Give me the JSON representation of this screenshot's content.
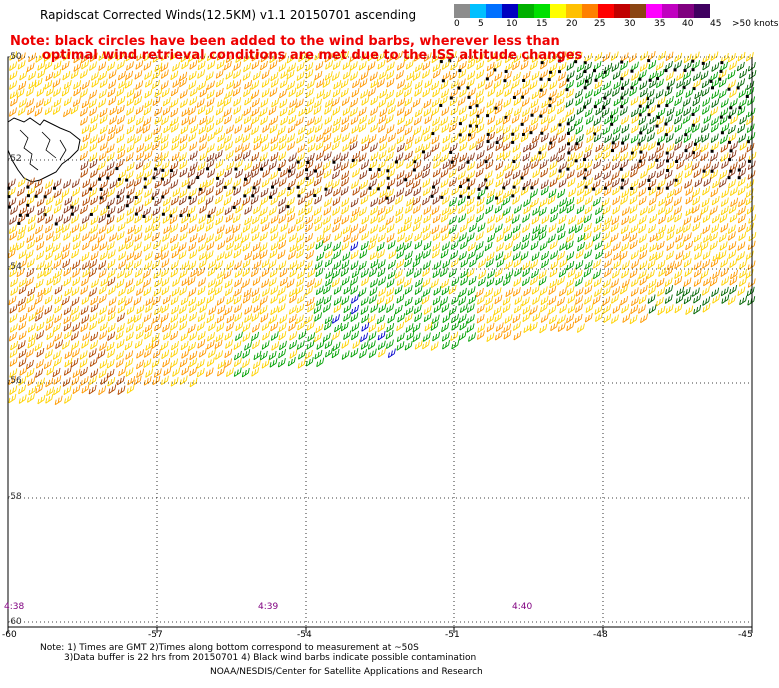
{
  "title": "Rapidscat Corrected Winds(12.5KM) v1.1 20150701 ascending",
  "note_line1": "Note: black circles have been added to the wind barbs, wherever less than",
  "note_line2": "optimal wind retrieval conditions are met due to the ISS altitude changes",
  "legend": {
    "colors": [
      "#8c8c8c",
      "#00c0ff",
      "#0070ff",
      "#0000c0",
      "#00b000",
      "#00e000",
      "#ffff00",
      "#ffc000",
      "#ff8000",
      "#ff0000",
      "#c00000",
      "#8b4513",
      "#ff00ff",
      "#c000c0",
      "#800080",
      "#400060"
    ],
    "labels": [
      "0",
      "5",
      "10",
      "15",
      "20",
      "25",
      "30",
      "35",
      "40",
      "45",
      ">50 knots"
    ]
  },
  "latitudes": [
    "-50",
    "-52",
    "-54",
    "-56",
    "-58",
    "-60"
  ],
  "longitudes": [
    "-60",
    "-57",
    "-54",
    "-51",
    "-48",
    "-45"
  ],
  "times": [
    "4:38",
    "4:39",
    "4:40"
  ],
  "footnotes": {
    "line1": "Note: 1) Times are GMT 2)Times along bottom correspond to measurement at ~50S",
    "line2": "3)Data buffer is 22 hrs from 20150701 4) Black wind barbs indicate possible contamination",
    "line3": "NOAA/NESDIS/Center for Satellite Applications and Research"
  }
}
